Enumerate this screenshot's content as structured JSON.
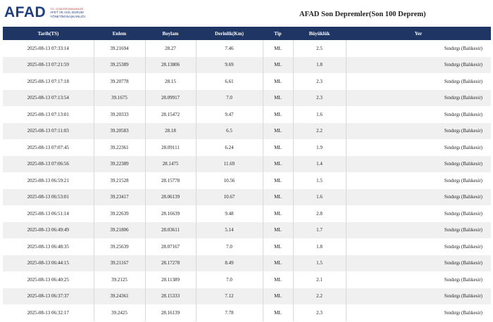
{
  "logo": {
    "word": "AFAD",
    "sub1": "T.C. İÇİŞLERİ BAKANLIĞI",
    "sub2": "AFET VE ACİL DURUM",
    "sub3": "YÖNETİMİ BAŞKANLIĞI"
  },
  "page_title": "AFAD Son Depremler(Son 100 Deprem)",
  "table": {
    "headers": [
      "Tarih(TS)",
      "Enlem",
      "Boylam",
      "Derinlik(Km)",
      "Tip",
      "Büyüklük",
      "Yer"
    ],
    "rows": [
      [
        "2025-08-13 07:33:14",
        "39.21694",
        "28.27",
        "7.46",
        "ML",
        "2.5",
        "Sındırgı (Balıkesir)"
      ],
      [
        "2025-08-13 07:21:59",
        "39.25389",
        "28.13806",
        "9.69",
        "ML",
        "1.8",
        "Sındırgı (Balıkesir)"
      ],
      [
        "2025-08-13 07:17:18",
        "39.20778",
        "28.15",
        "6.61",
        "ML",
        "2.3",
        "Sındırgı (Balıkesir)"
      ],
      [
        "2025-08-13 07:13:54",
        "39.1675",
        "28.09917",
        "7.0",
        "ML",
        "2.3",
        "Sındırgı (Balıkesir)"
      ],
      [
        "2025-08-13 07:13:01",
        "39.20333",
        "28.15472",
        "9.47",
        "ML",
        "1.6",
        "Sındırgı (Balıkesir)"
      ],
      [
        "2025-08-13 07:11:03",
        "39.20583",
        "28.18",
        "6.5",
        "ML",
        "2.2",
        "Sındırgı (Balıkesir)"
      ],
      [
        "2025-08-13 07:07:45",
        "39.22361",
        "28.09111",
        "6.24",
        "ML",
        "1.9",
        "Sındırgı (Balıkesir)"
      ],
      [
        "2025-08-13 07:06:56",
        "39.22389",
        "28.1475",
        "11.69",
        "ML",
        "1.4",
        "Sındırgı (Balıkesir)"
      ],
      [
        "2025-08-13 06:59:21",
        "39.21528",
        "28.15778",
        "10.56",
        "ML",
        "1.5",
        "Sındırgı (Balıkesir)"
      ],
      [
        "2025-08-13 06:53:01",
        "39.23417",
        "28.06139",
        "10.67",
        "ML",
        "1.6",
        "Sındırgı (Balıkesir)"
      ],
      [
        "2025-08-13 06:51:14",
        "39.22639",
        "28.16639",
        "9.48",
        "ML",
        "2.8",
        "Sındırgı (Balıkesir)"
      ],
      [
        "2025-08-13 06:49:49",
        "39.21806",
        "28.03611",
        "5.14",
        "ML",
        "1.7",
        "Sındırgı (Balıkesir)"
      ],
      [
        "2025-08-13 06:48:35",
        "39.25639",
        "28.07167",
        "7.0",
        "ML",
        "1.8",
        "Sındırgı (Balıkesir)"
      ],
      [
        "2025-08-13 06:44:15",
        "39.21167",
        "28.17278",
        "8.49",
        "ML",
        "1.5",
        "Sındırgı (Balıkesir)"
      ],
      [
        "2025-08-13 06:40:25",
        "39.2125",
        "28.11389",
        "7.0",
        "ML",
        "2.1",
        "Sındırgı (Balıkesir)"
      ],
      [
        "2025-08-13 06:37:37",
        "39.24361",
        "28.15333",
        "7.12",
        "ML",
        "2.2",
        "Sındırgı (Balıkesir)"
      ],
      [
        "2025-08-13 06:32:17",
        "39.2425",
        "28.16139",
        "7.78",
        "ML",
        "2.3",
        "Sındırgı (Balıkesir)"
      ]
    ]
  }
}
